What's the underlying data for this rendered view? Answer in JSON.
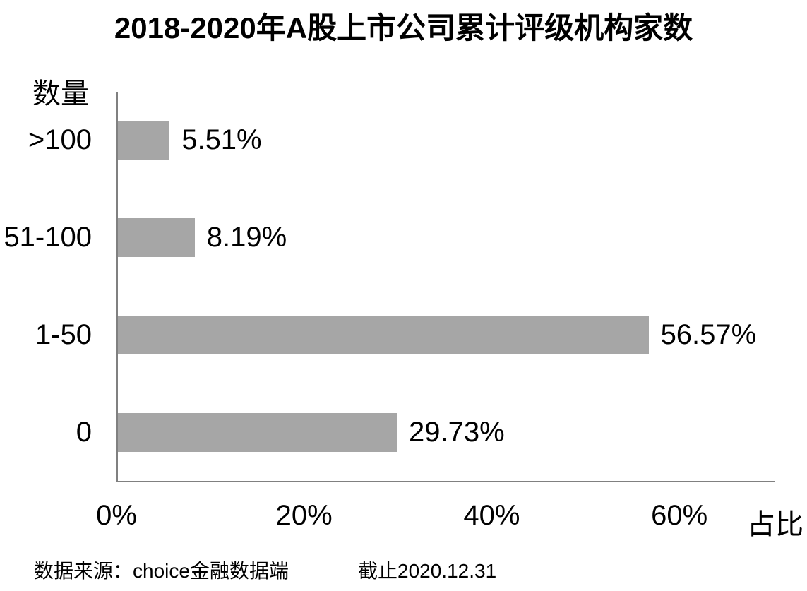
{
  "chart_data": {
    "type": "bar",
    "orientation": "horizontal",
    "title": "2018-2020年A股上市公司累计评级机构家数",
    "categories": [
      ">100",
      "51-100",
      "1-50",
      "0"
    ],
    "values": [
      5.51,
      8.19,
      56.57,
      29.73
    ],
    "value_labels": [
      "5.51%",
      "8.19%",
      "56.57%",
      "29.73%"
    ],
    "ylabel": "数量",
    "xlabel": "占比",
    "x_ticks": [
      "0%",
      "20%",
      "40%",
      "60%"
    ],
    "x_tick_values": [
      0,
      20,
      40,
      60
    ],
    "xlim": [
      0,
      70
    ],
    "grid": false,
    "legend": false,
    "bar_color": "#a6a6a6",
    "axis_color": "#808080",
    "text_color": "#000000"
  },
  "footer": {
    "source": "数据来源：choice金融数据端",
    "as_of": "截止2020.12.31"
  }
}
